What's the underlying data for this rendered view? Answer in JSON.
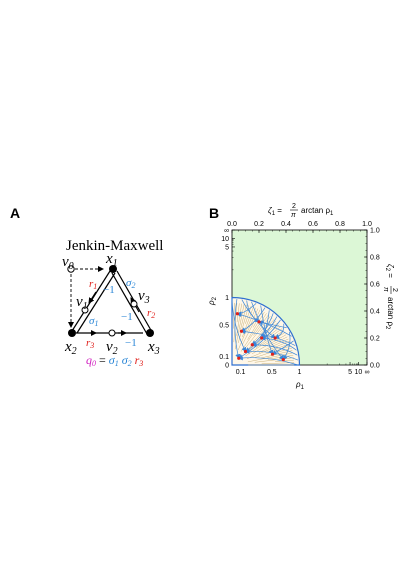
{
  "panels": {
    "a": {
      "letter": "A",
      "title": "Jenkin-Maxwell",
      "nodes": {
        "v0": {
          "base": "v",
          "sub": "0"
        },
        "x1": {
          "base": "x",
          "sub": "1"
        },
        "v1": {
          "base": "v",
          "sub": "1"
        },
        "v3": {
          "base": "v",
          "sub": "3"
        },
        "x2": {
          "base": "x",
          "sub": "2"
        },
        "v2": {
          "base": "v",
          "sub": "2"
        },
        "x3": {
          "base": "x",
          "sub": "3"
        }
      },
      "edge_labels": {
        "r1": {
          "base": "r",
          "sub": "1"
        },
        "r2": {
          "base": "r",
          "sub": "2"
        },
        "r3": {
          "base": "r",
          "sub": "3"
        },
        "sigma1": {
          "base": "σ",
          "sub": "1"
        },
        "sigma2": {
          "base": "σ",
          "sub": "2"
        },
        "minus_one": "−1"
      },
      "formula": {
        "lhs_base": "q",
        "lhs_sub": "0",
        "equals": " = ",
        "f1_base": "σ",
        "f1_sub": "1",
        "f2_base": "σ",
        "f2_sub": "2",
        "f3_base": "r",
        "f3_sub": "3"
      },
      "colors": {
        "r": "#e0201b",
        "sigma": "#2a86d6",
        "minus": "#2a86d6",
        "formula_lhs": "#d01fbf",
        "black": "#000000"
      }
    },
    "b": {
      "letter": "B",
      "top_axis": {
        "label_lhs": "ζ",
        "label_sub": "1",
        "label_eq": " = ",
        "frac_num": "2",
        "frac_den": "π",
        "label_fn": "arctan ρ",
        "label_fn_sub": "1",
        "ticks": [
          "0.0",
          "0.2",
          "0.4",
          "0.6",
          "0.8",
          "1.0"
        ]
      },
      "right_axis": {
        "label_lhs": "ζ",
        "label_sub": "2",
        "label_eq": " = ",
        "frac_num": "2",
        "frac_den": "π",
        "label_fn": "arctan ρ",
        "label_fn_sub": "2",
        "ticks": [
          "0.0",
          "0.2",
          "0.4",
          "0.6",
          "0.8",
          "1.0"
        ]
      },
      "bottom_axis": {
        "label": "ρ",
        "label_sub": "1",
        "ticks": [
          "0",
          "0.1",
          "0.5",
          "1",
          "5",
          "10",
          "∞"
        ]
      },
      "left_axis": {
        "label": "ρ",
        "label_sub": "2",
        "ticks": [
          "0",
          "0.1",
          "0.5",
          "1",
          "5",
          "10",
          "∞"
        ]
      },
      "colors": {
        "background": "#dcf7d6",
        "boundary": "#2f6fd0",
        "flow": "#3a86d8",
        "hatch": "#c9b27a",
        "points": "#e0201b"
      }
    }
  },
  "chart_data": {
    "type": "flow-diagram",
    "x_axis": {
      "label": "ρ1",
      "scale": "arctan",
      "range": [
        0,
        "∞"
      ],
      "tick_values": [
        0,
        0.1,
        0.5,
        1,
        5,
        10,
        "∞"
      ]
    },
    "y_axis": {
      "label": "ρ2",
      "scale": "arctan",
      "range": [
        0,
        "∞"
      ],
      "tick_values": [
        0,
        0.1,
        0.5,
        1,
        5,
        10,
        "∞"
      ]
    },
    "top_axis": {
      "label": "ζ1 = (2/π) arctan ρ1",
      "range": [
        0,
        1
      ],
      "tick_values": [
        0,
        0.2,
        0.4,
        0.6,
        0.8,
        1.0
      ]
    },
    "right_axis": {
      "label": "ζ2 = (2/π) arctan ρ2",
      "range": [
        0,
        1
      ],
      "tick_values": [
        0,
        0.2,
        0.4,
        0.6,
        0.8,
        1.0
      ]
    },
    "region": {
      "boundary_zeta_radius": 0.5,
      "shape": "quarter-circle",
      "intercepts": {
        "rho1": 1,
        "rho2": 1
      }
    },
    "fixed_points_zeta": [
      [
        0.05,
        0.05
      ],
      [
        0.1,
        0.1
      ],
      [
        0.15,
        0.15
      ],
      [
        0.22,
        0.2
      ],
      [
        0.07,
        0.25
      ],
      [
        0.3,
        0.08
      ],
      [
        0.04,
        0.38
      ],
      [
        0.38,
        0.04
      ],
      [
        0.2,
        0.32
      ],
      [
        0.32,
        0.2
      ]
    ]
  }
}
